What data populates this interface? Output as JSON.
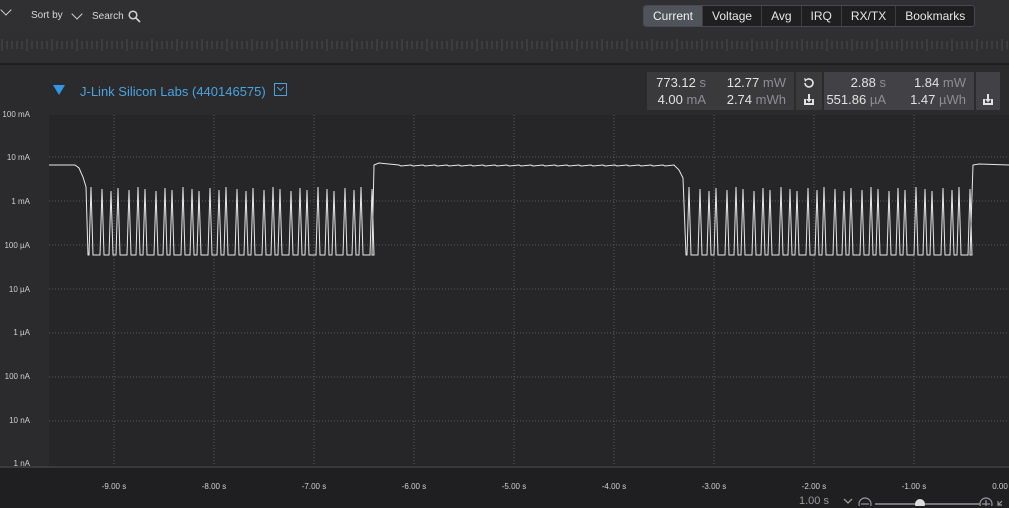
{
  "toolbar": {
    "sort_label": "Sort by",
    "search_label": "Search"
  },
  "tabs": [
    "Current",
    "Voltage",
    "Avg",
    "IRQ",
    "RX/TX",
    "Bookmarks"
  ],
  "active_tab": "Current",
  "channel": {
    "title": "J-Link Silicon Labs (440146575)"
  },
  "stats_total": {
    "time": {
      "value": "773.12",
      "unit": "s"
    },
    "power": {
      "value": "12.77",
      "unit": "mW"
    },
    "current": {
      "value": "4.00",
      "unit": "mA"
    },
    "energy": {
      "value": "2.74",
      "unit": "mWh"
    }
  },
  "stats_selection": {
    "time": {
      "value": "2.88",
      "unit": "s"
    },
    "power": {
      "value": "1.84",
      "unit": "mW"
    },
    "current": {
      "value": "551.86",
      "unit": "µA"
    },
    "energy": {
      "value": "1.47",
      "unit": "µWh"
    }
  },
  "y_axis": [
    "100 mA",
    "10 mA",
    "1 mA",
    "100 µA",
    "10 µA",
    "1 µA",
    "100 nA",
    "10 nA",
    "1 nA"
  ],
  "x_axis": [
    "-9.00 s",
    "-8.00 s",
    "-7.00 s",
    "-6.00 s",
    "-5.00 s",
    "-4.00 s",
    "-3.00 s",
    "-2.00 s",
    "-1.00 s",
    "0.00"
  ],
  "zoom": {
    "label": "1.00 s"
  },
  "colors": {
    "accent": "#2f97e6",
    "trace": "#e8e8e8",
    "grid": "#5a5a5e"
  }
}
